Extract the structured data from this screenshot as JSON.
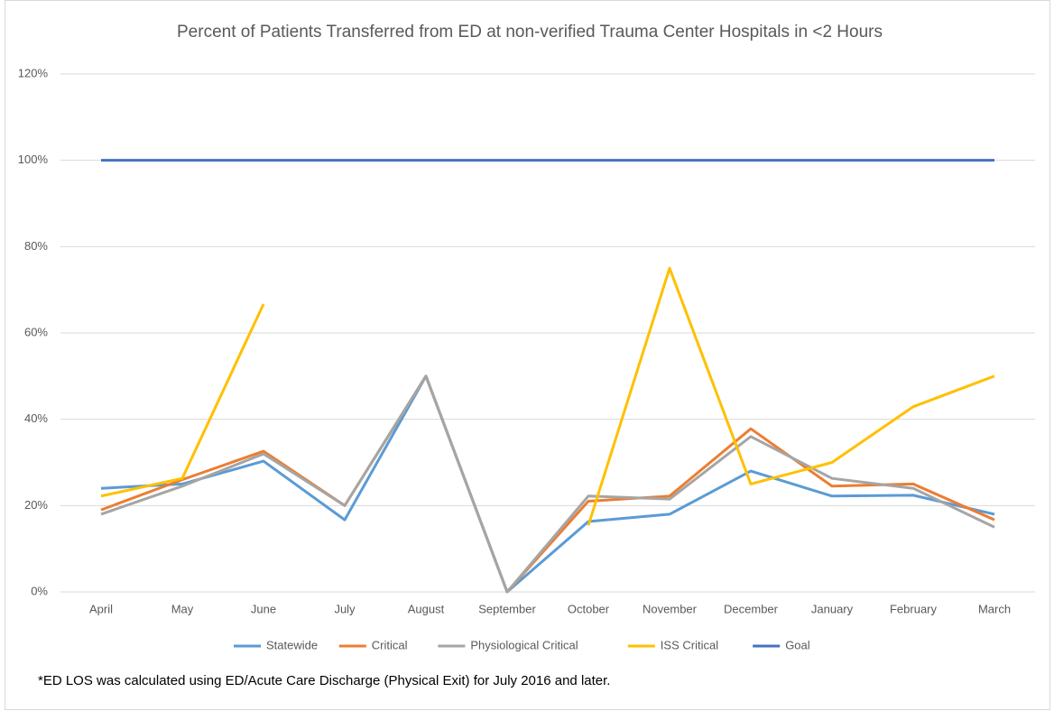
{
  "chart_data": {
    "type": "line",
    "title": "Percent of Patients Transferred from ED at non-verified Trauma Center Hospitals in <2 Hours",
    "categories": [
      "April",
      "May",
      "June",
      "July",
      "August",
      "September",
      "October",
      "November",
      "December",
      "January",
      "February",
      "March"
    ],
    "series": [
      {
        "name": "Statewide",
        "color": "#5b9bd5",
        "values": [
          24,
          25,
          30.3,
          16.7,
          50,
          0,
          16.3,
          18,
          28,
          22.2,
          22.4,
          18
        ]
      },
      {
        "name": "Critical",
        "color": "#ed7d31",
        "values": [
          19,
          26,
          32.6,
          20,
          50,
          0,
          21,
          22.2,
          37.8,
          24.5,
          25,
          16.7
        ]
      },
      {
        "name": "Physiological Critical",
        "color": "#a5a5a5",
        "values": [
          18,
          24.5,
          32,
          20,
          50,
          0,
          22.2,
          21.5,
          36,
          26.3,
          24,
          15
        ]
      },
      {
        "name": "ISS Critical",
        "color": "#ffc000",
        "values": [
          22.2,
          26.3,
          66.7,
          null,
          null,
          null,
          15.4,
          75,
          25,
          30,
          42.9,
          50
        ]
      },
      {
        "name": "Goal",
        "color": "#4472c4",
        "values": [
          100,
          100,
          100,
          100,
          100,
          100,
          100,
          100,
          100,
          100,
          100,
          100
        ]
      }
    ],
    "ylim": [
      0,
      120
    ],
    "yticks": [
      {
        "value": 0,
        "label": "0%"
      },
      {
        "value": 20,
        "label": "20%"
      },
      {
        "value": 40,
        "label": "40%"
      },
      {
        "value": 60,
        "label": "60%"
      },
      {
        "value": 80,
        "label": "80%"
      },
      {
        "value": 100,
        "label": "100%"
      },
      {
        "value": 120,
        "label": "120%"
      }
    ],
    "grid": true,
    "legend": "bottom",
    "annotation": "*ED LOS was calculated using ED/Acute Care Discharge (Physical Exit) for July 2016 and later."
  }
}
